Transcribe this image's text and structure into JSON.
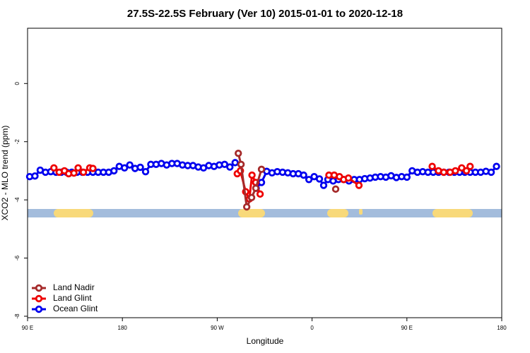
{
  "chart_data": {
    "type": "line",
    "title": "27.5S-22.5S February (Ver 10)   2015-01-01 to 2020-12-18",
    "x_label": "Longitude",
    "y_label": "XCO2 - MLO trend (ppm)",
    "xlim": [
      90,
      540
    ],
    "ylim": [
      -8.05,
      1.9
    ],
    "xticks": [
      {
        "value": 90,
        "label": "90 E"
      },
      180,
      {
        "value": 270,
        "label": "90 W"
      },
      {
        "value": 360,
        "label": "0"
      },
      {
        "value": 450,
        "label": "90 E"
      },
      {
        "value": 540,
        "label": "180"
      }
    ],
    "yticks": [
      0,
      -2,
      -4,
      -6,
      -8
    ],
    "legend": "bottom-left",
    "series": [
      {
        "name": "Ocean Glint",
        "color": "#0000ee",
        "x": [
          92,
          97,
          102,
          107,
          112,
          117,
          122,
          127,
          132,
          137,
          142,
          147,
          152,
          157,
          162,
          167,
          172,
          177,
          182,
          187,
          192,
          197,
          202,
          207,
          212,
          217,
          222,
          227,
          232,
          237,
          242,
          247,
          252,
          257,
          262,
          267,
          272,
          277,
          282,
          287,
          297,
          307,
          312,
          317,
          322,
          327,
          332,
          337,
          342,
          347,
          352,
          357,
          362,
          367,
          371,
          375,
          380,
          385,
          390,
          395,
          400,
          405,
          410,
          415,
          420,
          425,
          430,
          435,
          440,
          445,
          450,
          455,
          460,
          465,
          470,
          475,
          480,
          485,
          490,
          495,
          500,
          505,
          510,
          515,
          520,
          525,
          530,
          535
        ],
        "values": [
          -3.2,
          -3.18,
          -2.98,
          -3.05,
          -3.03,
          -3.05,
          -3.05,
          -3.05,
          -3.05,
          -3.05,
          -3.05,
          -3.05,
          -3.05,
          -3.05,
          -3.05,
          -3.05,
          -3.0,
          -2.85,
          -2.9,
          -2.8,
          -2.92,
          -2.88,
          -3.03,
          -2.78,
          -2.78,
          -2.75,
          -2.8,
          -2.75,
          -2.75,
          -2.8,
          -2.82,
          -2.82,
          -2.87,
          -2.9,
          -2.82,
          -2.85,
          -2.8,
          -2.78,
          -2.87,
          -2.72,
          null,
          -3.6,
          -3.4,
          -3.02,
          -3.07,
          -3.03,
          -3.05,
          -3.07,
          -3.1,
          -3.1,
          -3.15,
          -3.3,
          -3.2,
          -3.28,
          -3.5,
          -3.3,
          -3.35,
          -3.3,
          -3.3,
          -3.35,
          -3.3,
          -3.3,
          -3.27,
          -3.25,
          -3.22,
          -3.2,
          -3.22,
          -3.17,
          -3.23,
          -3.2,
          -3.22,
          -3.0,
          -3.05,
          -3.03,
          -3.05,
          -3.05,
          -3.05,
          -3.05,
          -3.05,
          -3.05,
          -3.05,
          -3.05,
          -3.05,
          -3.05,
          -3.05,
          -3.02,
          -3.05,
          -2.85
        ]
      },
      {
        "name": "Land Glint",
        "color": "#ee0000",
        "x": [
          115,
          120,
          125,
          129,
          134,
          138,
          143,
          149,
          152,
          200,
          289,
          292,
          297,
          300.5,
          303,
          306.5,
          310.7,
          340,
          376,
          381,
          386,
          390,
          394.5,
          404.5,
          440,
          474,
          480,
          485,
          491,
          496,
          502,
          506.5,
          510
        ],
        "values": [
          -2.9,
          -3.05,
          -3.0,
          -3.1,
          -3.08,
          -2.9,
          -3.05,
          -2.9,
          -2.92,
          null,
          -3.1,
          -3.0,
          -3.72,
          -3.97,
          -3.15,
          -3.4,
          -3.8,
          null,
          -3.15,
          -3.15,
          -3.2,
          -3.3,
          -3.25,
          -3.5,
          null,
          -2.85,
          -3.0,
          -3.05,
          -3.05,
          -3.0,
          -2.9,
          -3.0,
          -2.85
        ]
      },
      {
        "name": "Land Nadir",
        "color": "#a52a2a",
        "x": [
          290,
          292.6,
          298,
          302.6,
          306.6,
          312,
          350,
          382.4
        ],
        "values": [
          -2.4,
          -2.78,
          -4.24,
          -3.92,
          -3.6,
          -2.95,
          null,
          -3.63
        ]
      }
    ]
  }
}
